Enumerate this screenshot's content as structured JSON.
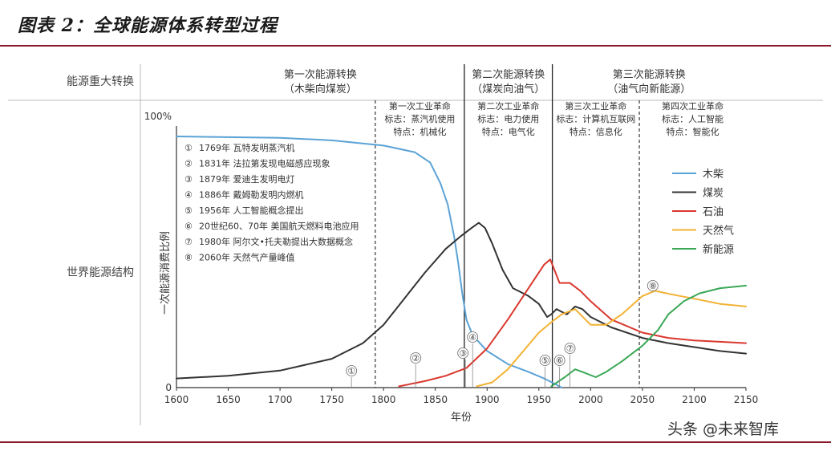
{
  "figure_title": "图表 2：全球能源体系转型过程",
  "watermark": "头条 @未来智库",
  "row_labels": {
    "top": "能源重大转换",
    "bottom": "世界能源结构"
  },
  "transitions": [
    {
      "title": "第一次能源转换",
      "subtitle": "（木柴向煤炭）"
    },
    {
      "title": "第二次能源转换",
      "subtitle": "（煤炭向油气）"
    },
    {
      "title": "第三次能源转换",
      "subtitle": "（油气向新能源）"
    }
  ],
  "revolutions": [
    {
      "name": "第一次工业革命",
      "sign": "标志：蒸汽机使用",
      "feature": "特点：机械化"
    },
    {
      "name": "第二次工业革命",
      "sign": "标志：电力使用",
      "feature": "特点：电气化"
    },
    {
      "name": "第三次工业革命",
      "sign": "标志：计算机互联网",
      "feature": "特点：信息化"
    },
    {
      "name": "第四次工业革命",
      "sign": "标志：人工智能",
      "feature": "特点：智能化"
    }
  ],
  "events": [
    {
      "marker": "①",
      "text": "1769年 瓦特发明蒸汽机",
      "year": 1769
    },
    {
      "marker": "②",
      "text": "1831年 法拉第发现电磁感应现象",
      "year": 1831
    },
    {
      "marker": "③",
      "text": "1879年 爱迪生发明电灯",
      "year": 1879
    },
    {
      "marker": "④",
      "text": "1886年 戴姆勒发明内燃机",
      "year": 1886
    },
    {
      "marker": "⑤",
      "text": "1956年 人工智能概念提出",
      "year": 1956
    },
    {
      "marker": "⑥",
      "text": "20世纪60、70年 美国航天燃料电池应用",
      "year": 1970
    },
    {
      "marker": "⑦",
      "text": "1980年 阿尔文•托夫勒提出大数据概念",
      "year": 1980
    },
    {
      "marker": "⑧",
      "text": "2060年 天然气产量峰值",
      "year": 2060
    }
  ],
  "chart_data": {
    "type": "line",
    "xlabel": "年份",
    "ylabel": "一次能源消费比例",
    "xlim": [
      1600,
      2150
    ],
    "ylim": [
      0,
      100
    ],
    "x_ticks": [
      1600,
      1650,
      1700,
      1750,
      1800,
      1850,
      1900,
      1950,
      2000,
      2050,
      2100,
      2150
    ],
    "y_tick_labels": [
      "0",
      "100%"
    ],
    "boundaries": [
      1792,
      1878,
      1963,
      2047
    ],
    "major_boundaries": [
      1878,
      1963
    ],
    "legend_position": "right",
    "series": [
      {
        "name": "木柴",
        "color": "#5ba3d6",
        "points": [
          [
            1600,
            96
          ],
          [
            1700,
            95.5
          ],
          [
            1750,
            94.5
          ],
          [
            1800,
            92.5
          ],
          [
            1830,
            90
          ],
          [
            1845,
            86
          ],
          [
            1855,
            78
          ],
          [
            1862,
            70
          ],
          [
            1868,
            58
          ],
          [
            1872,
            48
          ],
          [
            1876,
            36
          ],
          [
            1880,
            26
          ],
          [
            1886,
            20
          ],
          [
            1900,
            14
          ],
          [
            1920,
            9
          ],
          [
            1940,
            6
          ],
          [
            1955,
            3.5
          ],
          [
            1965,
            1.5
          ],
          [
            1972,
            0
          ]
        ]
      },
      {
        "name": "煤炭",
        "color": "#333333",
        "points": [
          [
            1600,
            3.5
          ],
          [
            1650,
            4.5
          ],
          [
            1700,
            6.5
          ],
          [
            1750,
            11
          ],
          [
            1780,
            17
          ],
          [
            1800,
            24
          ],
          [
            1820,
            34
          ],
          [
            1840,
            44
          ],
          [
            1860,
            53
          ],
          [
            1875,
            58
          ],
          [
            1885,
            61
          ],
          [
            1892,
            63
          ],
          [
            1898,
            61
          ],
          [
            1905,
            55
          ],
          [
            1915,
            45
          ],
          [
            1925,
            38
          ],
          [
            1940,
            35
          ],
          [
            1950,
            32
          ],
          [
            1958,
            27
          ],
          [
            1962,
            28
          ],
          [
            1967,
            30
          ],
          [
            1972,
            29
          ],
          [
            1977,
            28
          ],
          [
            1985,
            31
          ],
          [
            1992,
            30
          ],
          [
            2000,
            27
          ],
          [
            2020,
            23
          ],
          [
            2050,
            19
          ],
          [
            2075,
            17
          ],
          [
            2100,
            15.5
          ],
          [
            2125,
            14
          ],
          [
            2150,
            13
          ]
        ]
      },
      {
        "name": "石油",
        "color": "#d9382e",
        "points": [
          [
            1815,
            0.5
          ],
          [
            1840,
            2.5
          ],
          [
            1860,
            4.5
          ],
          [
            1880,
            7.5
          ],
          [
            1900,
            15
          ],
          [
            1920,
            26
          ],
          [
            1940,
            38
          ],
          [
            1955,
            47
          ],
          [
            1961,
            49
          ],
          [
            1966,
            44
          ],
          [
            1970,
            40
          ],
          [
            1980,
            40
          ],
          [
            1990,
            37
          ],
          [
            2000,
            33
          ],
          [
            2020,
            26
          ],
          [
            2050,
            21
          ],
          [
            2075,
            19
          ],
          [
            2100,
            18
          ],
          [
            2125,
            17.5
          ],
          [
            2150,
            17
          ]
        ]
      },
      {
        "name": "天然气",
        "color": "#f2b233",
        "points": [
          [
            1890,
            0.5
          ],
          [
            1905,
            2
          ],
          [
            1920,
            7
          ],
          [
            1935,
            14
          ],
          [
            1950,
            21
          ],
          [
            1962,
            25
          ],
          [
            1972,
            28
          ],
          [
            1985,
            30
          ],
          [
            2000,
            24
          ],
          [
            2015,
            24
          ],
          [
            2030,
            28
          ],
          [
            2050,
            35
          ],
          [
            2062,
            37
          ],
          [
            2080,
            35.5
          ],
          [
            2100,
            34
          ],
          [
            2125,
            32
          ],
          [
            2150,
            31
          ]
        ]
      },
      {
        "name": "新能源",
        "color": "#3aa856",
        "points": [
          [
            1962,
            0.5
          ],
          [
            1975,
            4
          ],
          [
            1985,
            7
          ],
          [
            1992,
            6
          ],
          [
            2005,
            4
          ],
          [
            2015,
            6
          ],
          [
            2030,
            10
          ],
          [
            2050,
            16
          ],
          [
            2065,
            22
          ],
          [
            2075,
            28
          ],
          [
            2090,
            33
          ],
          [
            2105,
            36
          ],
          [
            2125,
            38
          ],
          [
            2150,
            39
          ]
        ]
      }
    ]
  }
}
